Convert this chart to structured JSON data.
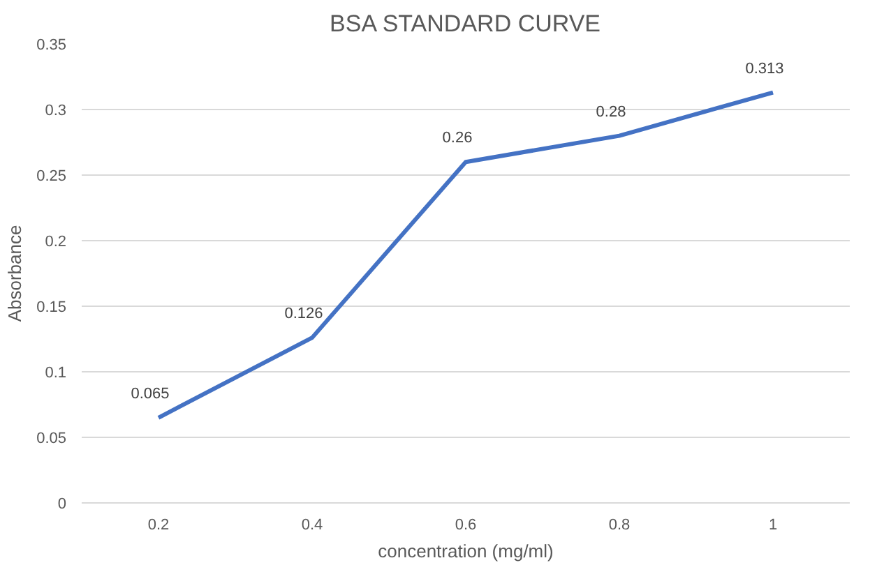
{
  "chart_data": {
    "type": "line",
    "title": "BSA STANDARD CURVE",
    "xlabel": "concentration (mg/ml)",
    "ylabel": "Absorbance",
    "categories": [
      "0.2",
      "0.4",
      "0.6",
      "0.8",
      "1"
    ],
    "series": [
      {
        "color": "#4472c4",
        "values": [
          0.065,
          0.126,
          0.26,
          0.28,
          0.313
        ]
      }
    ],
    "ylim": [
      0,
      0.35
    ],
    "yticks": [
      0,
      0.05,
      0.1,
      0.15,
      0.2,
      0.25,
      0.3,
      0.35
    ],
    "grid": "y",
    "marker": "none",
    "line_style": "solid",
    "data_labels": true
  }
}
